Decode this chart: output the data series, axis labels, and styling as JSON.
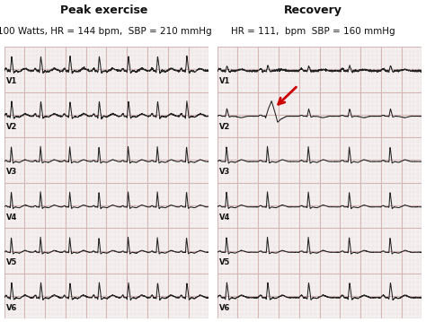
{
  "title_left": "Peak exercise",
  "subtitle_left": "100 Watts, HR = 144 bpm,  SBP = 210 mmHg",
  "title_right": "Recovery",
  "subtitle_right": "HR = 111,  bpm  SBP = 160 mmHg",
  "leads": [
    "V1",
    "V2",
    "V3",
    "V4",
    "V5",
    "V6"
  ],
  "bg_color": "#f5f0f0",
  "grid_major_color": "#d4b8b8",
  "grid_minor_color": "#ede0e0",
  "ecg_color": "#222222",
  "text_color": "#111111",
  "arrow_color": "#cc0000",
  "title_fontsize": 9,
  "subtitle_fontsize": 7.5,
  "lead_label_fontsize": 6,
  "fig_width": 4.74,
  "fig_height": 3.59,
  "dpi": 100
}
